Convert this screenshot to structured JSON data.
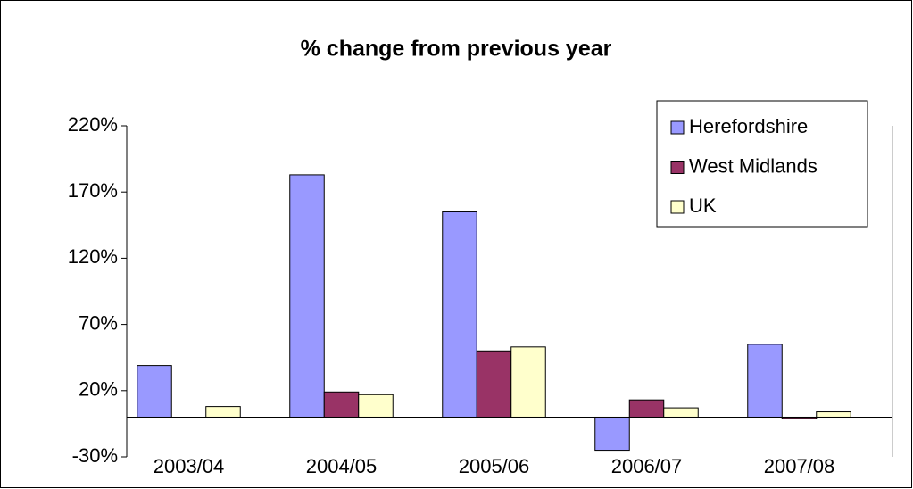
{
  "chart_data": {
    "type": "bar",
    "title": "% change from previous year",
    "categories": [
      "2003/04",
      "2004/05",
      "2005/06",
      "2006/07",
      "2007/08"
    ],
    "series": [
      {
        "name": "Herefordshire",
        "color": "#9999ff",
        "values": [
          39,
          183,
          155,
          -25,
          55
        ]
      },
      {
        "name": "West Midlands",
        "color": "#993366",
        "values": [
          0,
          19,
          50,
          13,
          -1
        ]
      },
      {
        "name": "UK",
        "color": "#ffffcc",
        "values": [
          8,
          17,
          53,
          7,
          4
        ]
      }
    ],
    "ylim": [
      -30,
      220
    ],
    "yticks": [
      {
        "value": -30,
        "label": "-30%"
      },
      {
        "value": 20,
        "label": "20%"
      },
      {
        "value": 70,
        "label": "70%"
      },
      {
        "value": 120,
        "label": "120%"
      },
      {
        "value": 170,
        "label": "170%"
      },
      {
        "value": 220,
        "label": "220%"
      }
    ],
    "grid": false,
    "legend": "top-right"
  }
}
